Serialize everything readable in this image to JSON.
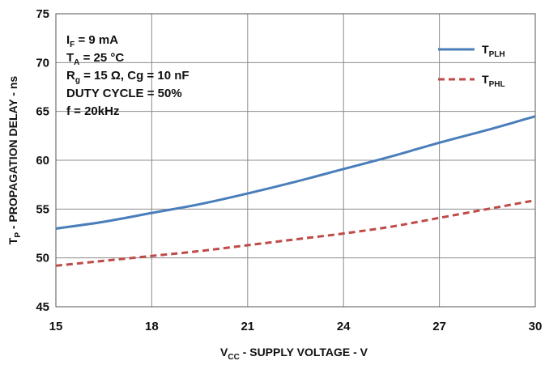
{
  "chart_data": {
    "type": "line",
    "xlabel": {
      "main": "V",
      "sub": "CC",
      "rest": " - SUPPLY VOLTAGE - V"
    },
    "ylabel": {
      "main": "T",
      "sub": "P",
      "rest": " - PROPAGATION DELAY - ns"
    },
    "xlim": [
      15,
      30
    ],
    "ylim": [
      45,
      75
    ],
    "xticks": [
      15,
      18,
      21,
      24,
      27,
      30
    ],
    "yticks": [
      45,
      50,
      55,
      60,
      65,
      70,
      75
    ],
    "grid": true,
    "legend_position": "top-right",
    "annotations": [
      {
        "main": "I",
        "sub": "F",
        "rest": " = 9 mA"
      },
      {
        "main": "T",
        "sub": "A",
        "rest": " = 25 °C"
      },
      {
        "main": "R",
        "sub": "g",
        "rest": " = 15 Ω, Cg = 10 nF"
      },
      {
        "main": "DUTY CYCLE = 50%",
        "sub": "",
        "rest": ""
      },
      {
        "main": "f = 20kHz",
        "sub": "",
        "rest": ""
      }
    ],
    "series": [
      {
        "name": {
          "main": "T",
          "sub": "PLH"
        },
        "color": "#4a7ebb",
        "dash": "solid",
        "x": [
          15,
          16.5,
          18,
          19.5,
          21,
          22.5,
          24,
          25.5,
          27,
          28.5,
          30
        ],
        "y": [
          53.0,
          53.7,
          54.6,
          55.5,
          56.6,
          57.8,
          59.1,
          60.4,
          61.8,
          63.1,
          64.5
        ]
      },
      {
        "name": {
          "main": "T",
          "sub": "PHL"
        },
        "color": "#be4b48",
        "dash": "dashed",
        "x": [
          15,
          16.5,
          18,
          19.5,
          21,
          22.5,
          24,
          25.5,
          27,
          28.5,
          30
        ],
        "y": [
          49.2,
          49.7,
          50.2,
          50.7,
          51.3,
          51.9,
          52.5,
          53.2,
          54.1,
          55.0,
          55.9
        ]
      }
    ]
  }
}
